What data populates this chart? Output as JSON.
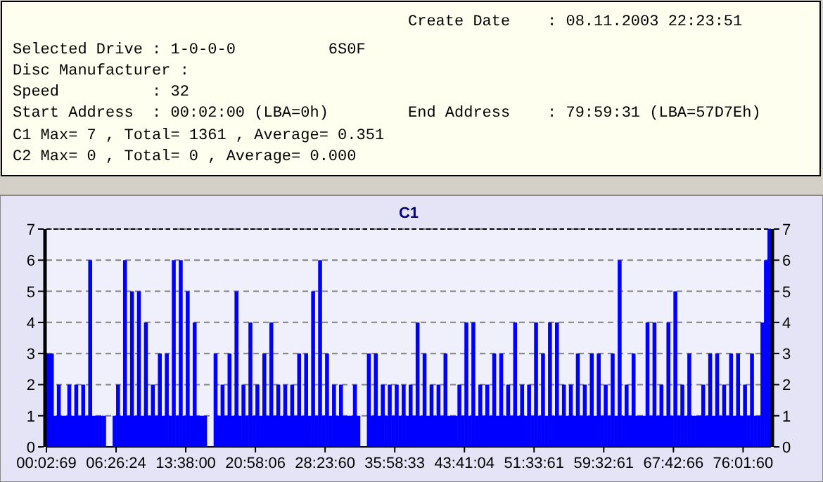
{
  "chart_data": {
    "type": "bar",
    "title": "C1",
    "annotations": [
      "Create Date    : 08.11.2003 22:23:51",
      "Selected Drive : 1-0-0-0          6S0F",
      "Disc Manufacturer :",
      "Speed          : 32",
      "Start Address  : 00:02:00 (LBA=0h)",
      "End Address    : 79:59:31 (LBA=57D7Eh)",
      "C1 Max= 7 , Total= 1361 , Average= 0.351",
      "C2 Max= 0 , Total= 0 , Average= 0.000"
    ],
    "categories": [
      "00:02:69",
      null,
      null,
      null,
      null,
      null,
      null,
      null,
      null,
      null,
      null,
      null,
      null,
      null,
      null,
      null,
      null,
      null,
      null,
      null,
      "06:26:24",
      null,
      null,
      null,
      null,
      null,
      null,
      null,
      null,
      null,
      null,
      null,
      null,
      null,
      null,
      null,
      null,
      null,
      null,
      null,
      "13:38:00",
      null,
      null,
      null,
      null,
      null,
      null,
      null,
      null,
      null,
      null,
      null,
      null,
      null,
      null,
      null,
      null,
      null,
      null,
      null,
      "20:58:06",
      null,
      null,
      null,
      null,
      null,
      null,
      null,
      null,
      null,
      null,
      null,
      null,
      null,
      null,
      null,
      null,
      null,
      null,
      null,
      "28:23:60",
      null,
      null,
      null,
      null,
      null,
      null,
      null,
      null,
      null,
      null,
      null,
      null,
      null,
      null,
      null,
      null,
      null,
      null,
      null,
      "35:58:33",
      null,
      null,
      null,
      null,
      null,
      null,
      null,
      null,
      null,
      null,
      null,
      null,
      null,
      null,
      null,
      null,
      null,
      null,
      null,
      "43:41:04",
      null,
      null,
      null,
      null,
      null,
      null,
      null,
      null,
      null,
      null,
      null,
      null,
      null,
      null,
      null,
      null,
      null,
      null,
      null,
      "51:33:61",
      null,
      null,
      null,
      null,
      null,
      null,
      null,
      null,
      null,
      null,
      null,
      null,
      null,
      null,
      null,
      null,
      null,
      null,
      null,
      "59:32:61",
      null,
      null,
      null,
      null,
      null,
      null,
      null,
      null,
      null,
      null,
      null,
      null,
      null,
      null,
      null,
      null,
      null,
      null,
      null,
      "67:42:66",
      null,
      null,
      null,
      null,
      null,
      null,
      null,
      null,
      null,
      null,
      null,
      null,
      null,
      null,
      null,
      null,
      null,
      null,
      null,
      "76:01:60",
      null,
      null,
      null,
      null,
      null,
      null,
      null
    ],
    "values": [
      3,
      3,
      1,
      2,
      1,
      1,
      2,
      1,
      2,
      1,
      2,
      1,
      6,
      1,
      1,
      1,
      1,
      0,
      0,
      1,
      2,
      1,
      6,
      1,
      5,
      1,
      5,
      1,
      4,
      1,
      2,
      1,
      3,
      1,
      3,
      1,
      6,
      1,
      6,
      1,
      5,
      1,
      4,
      1,
      1,
      1,
      0,
      0,
      3,
      1,
      2,
      1,
      3,
      1,
      5,
      1,
      2,
      1,
      4,
      1,
      2,
      1,
      3,
      1,
      4,
      1,
      2,
      1,
      2,
      1,
      2,
      1,
      3,
      1,
      3,
      1,
      5,
      1,
      6,
      1,
      3,
      1,
      2,
      1,
      2,
      1,
      1,
      1,
      2,
      1,
      0,
      0,
      3,
      1,
      3,
      1,
      2,
      1,
      2,
      1,
      2,
      1,
      2,
      1,
      2,
      1,
      4,
      1,
      3,
      1,
      2,
      1,
      2,
      1,
      3,
      1,
      1,
      1,
      2,
      1,
      4,
      1,
      4,
      1,
      2,
      1,
      2,
      1,
      3,
      1,
      3,
      1,
      2,
      1,
      4,
      1,
      2,
      1,
      2,
      1,
      4,
      1,
      3,
      1,
      4,
      1,
      4,
      1,
      2,
      1,
      2,
      1,
      3,
      1,
      2,
      1,
      3,
      1,
      3,
      1,
      2,
      1,
      3,
      1,
      6,
      1,
      2,
      1,
      3,
      1,
      1,
      1,
      4,
      1,
      4,
      1,
      2,
      1,
      4,
      1,
      5,
      1,
      2,
      1,
      3,
      1,
      1,
      1,
      2,
      1,
      3,
      1,
      3,
      1,
      2,
      1,
      3,
      1,
      3,
      1,
      2,
      1,
      3,
      1,
      1,
      4,
      6,
      7
    ],
    "color": "#0000ff",
    "ylim": [
      0,
      7
    ],
    "yticks": [
      0,
      1,
      2,
      3,
      4,
      5,
      6,
      7
    ],
    "y2lim": [
      0,
      7
    ],
    "y2ticks": [
      0,
      1,
      2,
      3,
      4,
      5,
      6,
      7
    ],
    "grid": "y"
  }
}
